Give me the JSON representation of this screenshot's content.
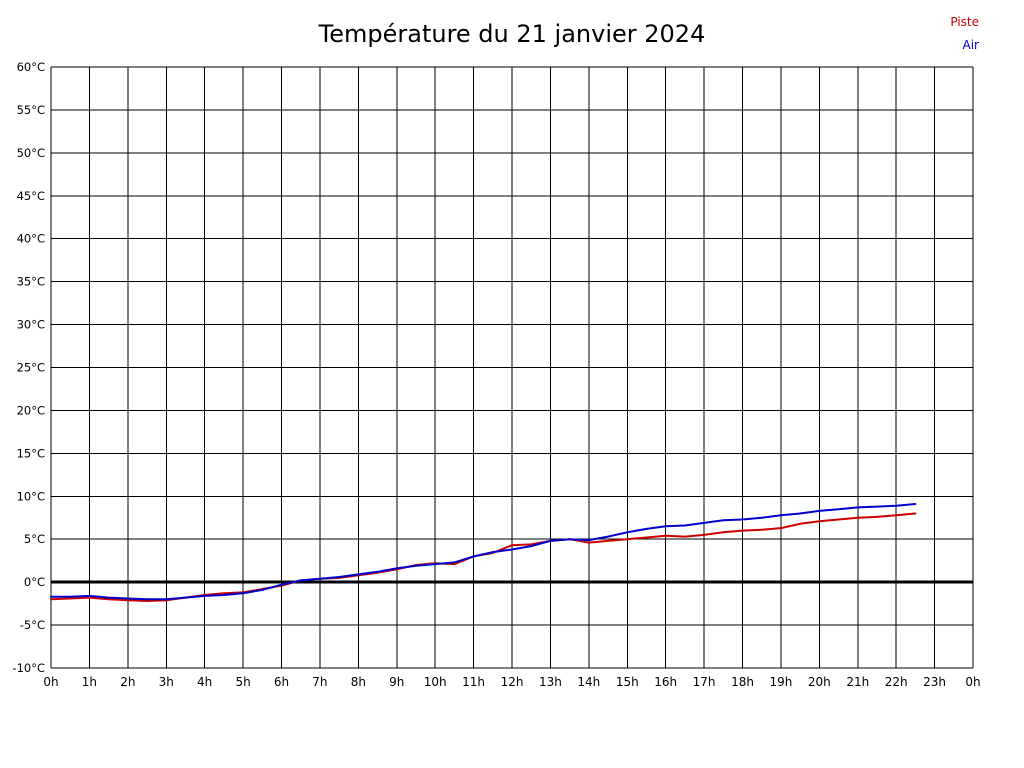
{
  "chart_data": {
    "type": "line",
    "title": "Température du 21 janvier 2024",
    "xlabel": "",
    "ylabel": "",
    "ylim": [
      -10,
      60
    ],
    "y_tick_step": 5,
    "x_range": [
      0,
      24
    ],
    "x_tick_labels": [
      "0h",
      "1h",
      "2h",
      "3h",
      "4h",
      "5h",
      "6h",
      "7h",
      "8h",
      "9h",
      "10h",
      "11h",
      "12h",
      "13h",
      "14h",
      "15h",
      "16h",
      "17h",
      "18h",
      "19h",
      "20h",
      "21h",
      "22h",
      "23h",
      "0h"
    ],
    "y_tick_labels": [
      "60°C",
      "55°C",
      "50°C",
      "45°C",
      "40°C",
      "35°C",
      "30°C",
      "25°C",
      "20°C",
      "15°C",
      "10°C",
      "5°C",
      "0°C",
      "-5°C",
      "-10°C"
    ],
    "grid": true,
    "zero_line": true,
    "legend_position": "top-right",
    "x": [
      0,
      0.5,
      1,
      1.5,
      2,
      2.5,
      3,
      3.5,
      4,
      4.5,
      5,
      5.5,
      6,
      6.5,
      7,
      7.5,
      8,
      8.5,
      9,
      9.5,
      10,
      10.5,
      11,
      11.5,
      12,
      12.5,
      13,
      13.5,
      14,
      14.5,
      15,
      15.5,
      16,
      16.5,
      17,
      17.5,
      18,
      18.5,
      19,
      19.5,
      20,
      20.5,
      21,
      21.5,
      22,
      22.5
    ],
    "series": [
      {
        "name": "Piste",
        "color": "#cc0000",
        "values": [
          -2.0,
          -1.9,
          -1.8,
          -2.0,
          -2.1,
          -2.2,
          -2.1,
          -1.8,
          -1.5,
          -1.3,
          -1.2,
          -0.8,
          -0.4,
          0.2,
          0.4,
          0.5,
          0.8,
          1.1,
          1.5,
          2.0,
          2.2,
          2.1,
          3.0,
          3.4,
          4.3,
          4.4,
          4.8,
          5.0,
          4.6,
          4.8,
          5.0,
          5.2,
          5.4,
          5.3,
          5.5,
          5.8,
          6.0,
          6.1,
          6.3,
          6.8,
          7.1,
          7.3,
          7.5,
          7.6,
          7.8,
          8.0
        ]
      },
      {
        "name": "Air",
        "color": "#0000cc",
        "values": [
          -1.7,
          -1.7,
          -1.6,
          -1.8,
          -1.9,
          -2.0,
          -2.0,
          -1.8,
          -1.6,
          -1.5,
          -1.3,
          -0.9,
          -0.3,
          0.2,
          0.4,
          0.6,
          0.9,
          1.2,
          1.6,
          1.9,
          2.1,
          2.3,
          3.0,
          3.5,
          3.8,
          4.2,
          4.8,
          5.0,
          4.9,
          5.3,
          5.8,
          6.2,
          6.5,
          6.6,
          6.9,
          7.2,
          7.3,
          7.5,
          7.8,
          8.0,
          8.3,
          8.5,
          8.7,
          8.8,
          8.9,
          9.1
        ]
      }
    ]
  }
}
